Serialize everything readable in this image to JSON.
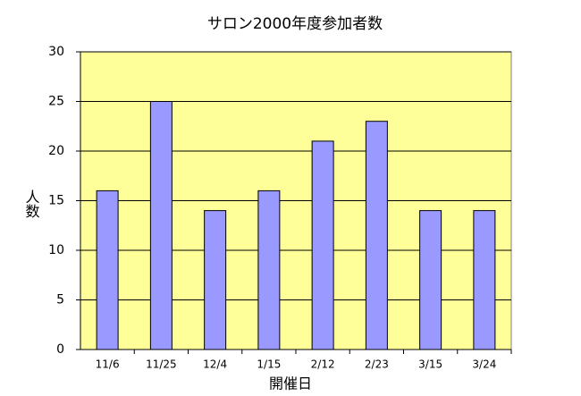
{
  "chart_data": {
    "type": "bar",
    "title": "サロン2000年度参加者数",
    "x_label": "開催日",
    "y_label": "人数",
    "categories": [
      "11/6",
      "11/25",
      "12/4",
      "1/15",
      "2/12",
      "2/23",
      "3/15",
      "3/24"
    ],
    "values": [
      16,
      25,
      14,
      16,
      21,
      23,
      14,
      14
    ],
    "color": "#9999ff",
    "ylim": [
      0,
      30
    ],
    "yticks": [
      0,
      5,
      10,
      15,
      20,
      25,
      30
    ],
    "grid": true
  }
}
